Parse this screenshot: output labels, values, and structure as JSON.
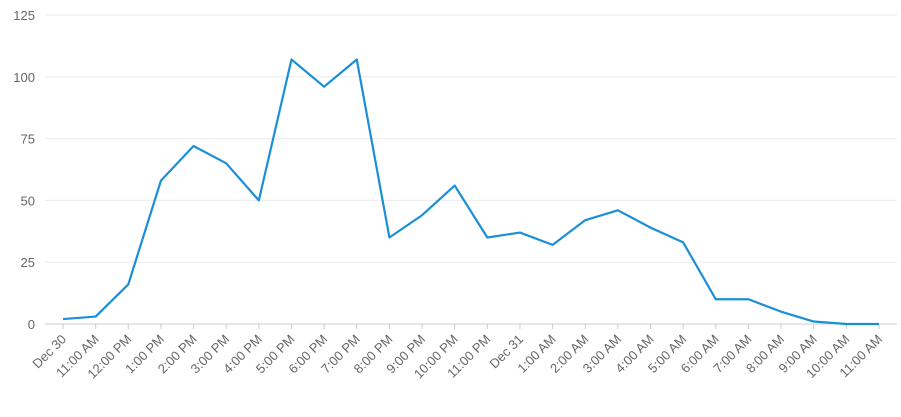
{
  "chart_data": {
    "type": "line",
    "categories": [
      "Dec 30",
      "11:00 AM",
      "12:00 PM",
      "1:00 PM",
      "2:00 PM",
      "3:00 PM",
      "4:00 PM",
      "5:00 PM",
      "6:00 PM",
      "7:00 PM",
      "8:00 PM",
      "9:00 PM",
      "10:00 PM",
      "11:00 PM",
      "Dec 31",
      "1:00 AM",
      "2:00 AM",
      "3:00 AM",
      "4:00 AM",
      "5:00 AM",
      "6:00 AM",
      "7:00 AM",
      "8:00 AM",
      "9:00 AM",
      "10:00 AM",
      "11:00 AM"
    ],
    "values": [
      2,
      3,
      16,
      58,
      72,
      65,
      50,
      107,
      96,
      107,
      35,
      44,
      56,
      35,
      37,
      32,
      42,
      46,
      39,
      33,
      10,
      10,
      5,
      1,
      0,
      0
    ],
    "color": "#1b8fd6",
    "ylim": [
      0,
      125
    ],
    "yticks": [
      0,
      25,
      50,
      75,
      100,
      125
    ],
    "grid": true
  }
}
